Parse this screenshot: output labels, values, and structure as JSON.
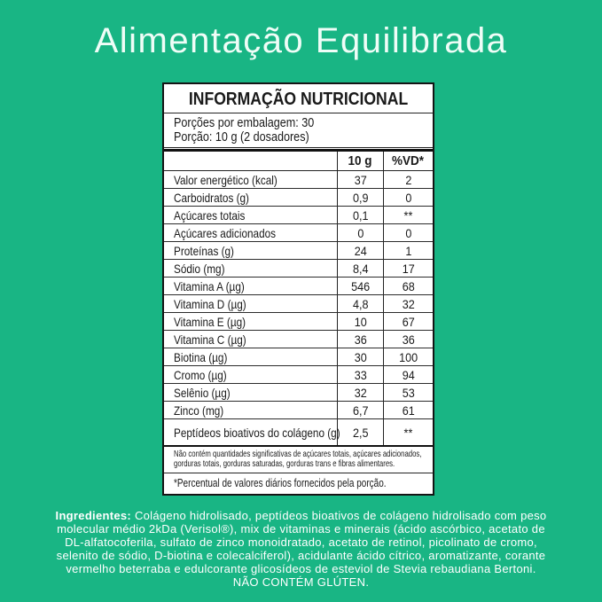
{
  "header": {
    "title": "Alimentação Equilibrada"
  },
  "nutrition": {
    "title": "INFORMAÇÃO NUTRICIONAL",
    "servings_per_package": "Porções por embalagem: 30",
    "serving_size": "Porção: 10 g (2 dosadores)",
    "columns": {
      "amount": "10 g",
      "dv": "%VD*"
    },
    "rows": [
      {
        "name": "Valor energético (kcal)",
        "amount": "37",
        "dv": "2"
      },
      {
        "name": "Carboidratos (g)",
        "amount": "0,9",
        "dv": "0"
      },
      {
        "name": "Açúcares totais",
        "amount": "0,1",
        "dv": "**"
      },
      {
        "name": "Açúcares adicionados",
        "amount": "0",
        "dv": "0"
      },
      {
        "name": "Proteínas (g)",
        "amount": "24",
        "dv": "1"
      },
      {
        "name": "Sódio (mg)",
        "amount": "8,4",
        "dv": "17"
      },
      {
        "name": "Vitamina A (µg)",
        "amount": "546",
        "dv": "68"
      },
      {
        "name": "Vitamina D (µg)",
        "amount": "4,8",
        "dv": "32"
      },
      {
        "name": "Vitamina E (µg)",
        "amount": "10",
        "dv": "67"
      },
      {
        "name": "Vitamina C (µg)",
        "amount": "36",
        "dv": "36"
      },
      {
        "name": "Biotina (µg)",
        "amount": "30",
        "dv": "100"
      },
      {
        "name": "Cromo (µg)",
        "amount": "33",
        "dv": "94"
      },
      {
        "name": "Selênio (µg)",
        "amount": "32",
        "dv": "53"
      },
      {
        "name": "Zinco (mg)",
        "amount": "6,7",
        "dv": "61"
      },
      {
        "name": "Peptídeos bioativos do colágeno (g)",
        "amount": "2,5",
        "dv": "**"
      }
    ],
    "note_lines": [
      "Não contém quantidades significativas de açúcares totais, açúcares adicionados,",
      "gorduras totais, gorduras saturadas, gorduras trans e fibras alimentares."
    ],
    "footnote": "*Percentual de valores diários fornecidos pela porção."
  },
  "ingredients": {
    "label": "Ingredientes:",
    "lines": [
      "Colágeno hidrolisado, peptídeos bioativos de colágeno hidrolisado com peso",
      "molecular médio 2kDa (Verisol®), mix de vitaminas e minerais (ácido ascórbico, acetato de",
      "DL-alfatocoferila, sulfato de zinco monoidratado, acetato de retinol, picolinato de cromo,",
      "selenito de sódio, D-biotina e colecalciferol), acidulante ácido cítrico, aromatizante, corante",
      "vermelho beterraba e edulcorante glicosídeos de esteviol de Stevia rebaudiana Bertoni."
    ],
    "gluten_notice": "NÃO CONTÉM GLÚTEN."
  },
  "colors": {
    "background": "#19b584",
    "panel_bg": "#ffffff",
    "panel_text": "#1a1a1a",
    "light_text": "#effdf7"
  }
}
